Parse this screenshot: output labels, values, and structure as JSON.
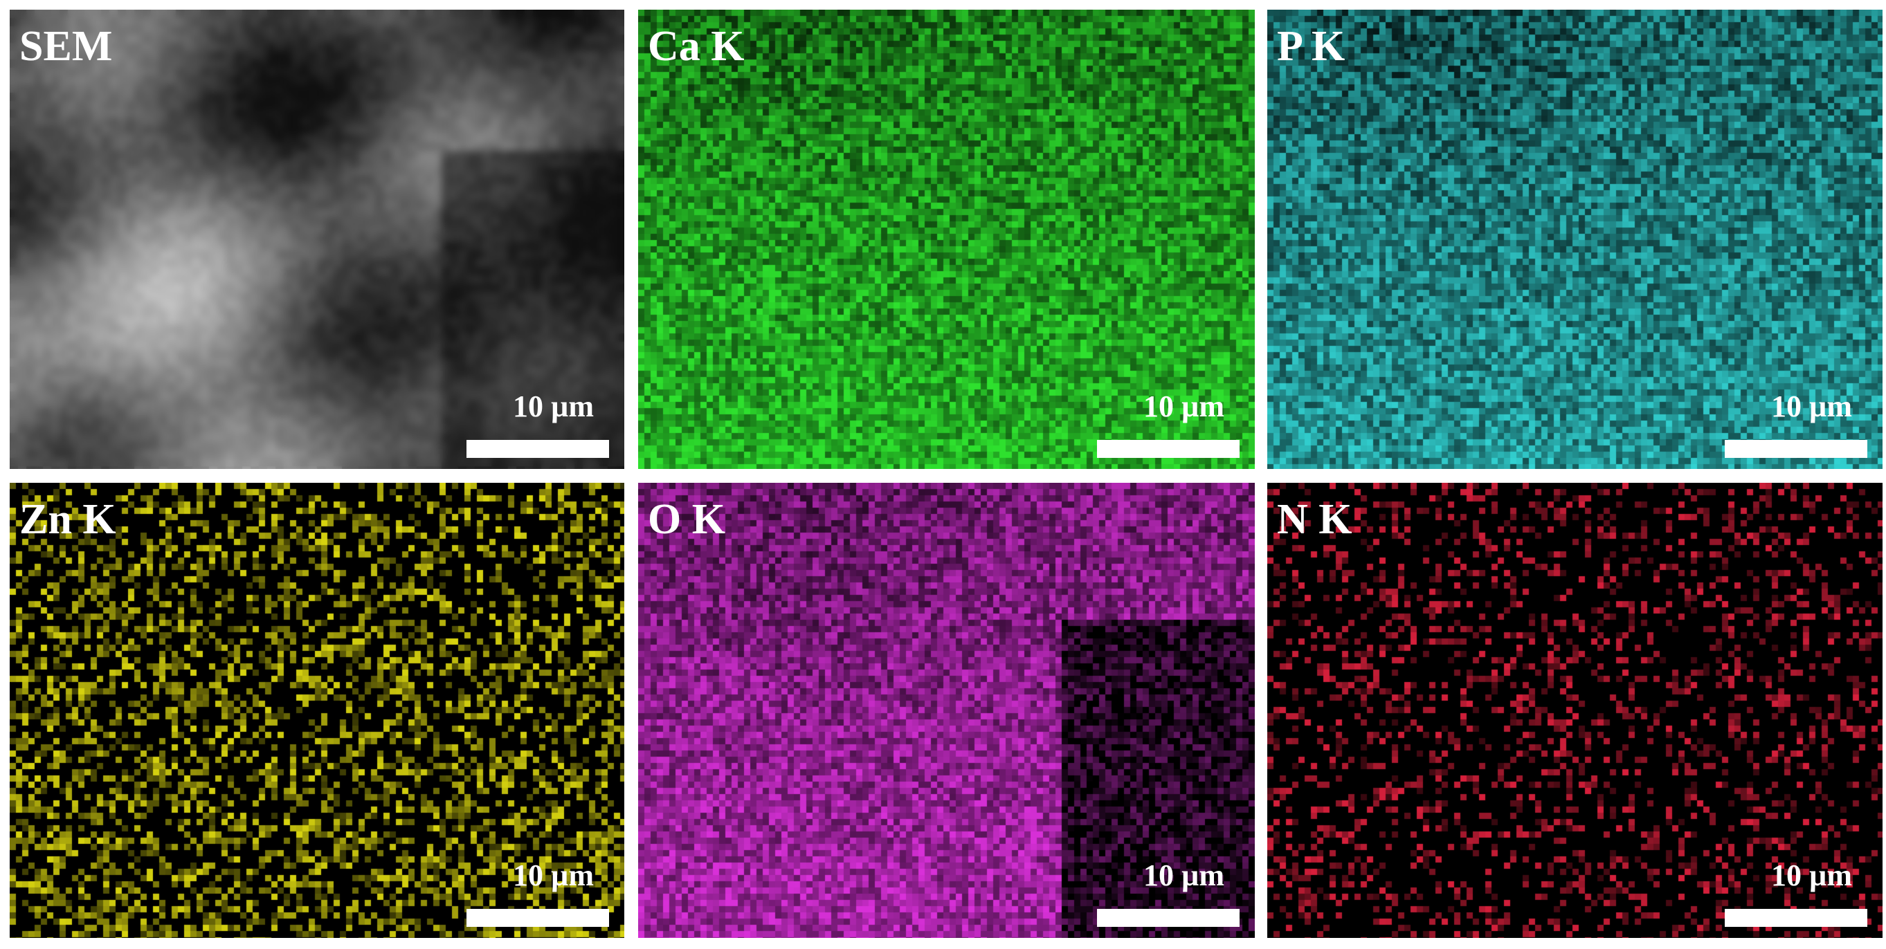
{
  "panels": [
    {
      "label": "SEM",
      "scale": "10 µm",
      "color": "#ffffff",
      "kind": "sem"
    },
    {
      "label": "Ca K",
      "scale": "10 µm",
      "color": "#2ee02e",
      "kind": "map"
    },
    {
      "label": "P K",
      "scale": "10 µm",
      "color": "#33d4d4",
      "kind": "map"
    },
    {
      "label": "Zn K",
      "scale": "10 µm",
      "color": "#d8d410",
      "kind": "map"
    },
    {
      "label": "O K",
      "scale": "10 µm",
      "color": "#d830d8",
      "kind": "map"
    },
    {
      "label": "N K",
      "scale": "10 µm",
      "color": "#d8203c",
      "kind": "map"
    }
  ]
}
